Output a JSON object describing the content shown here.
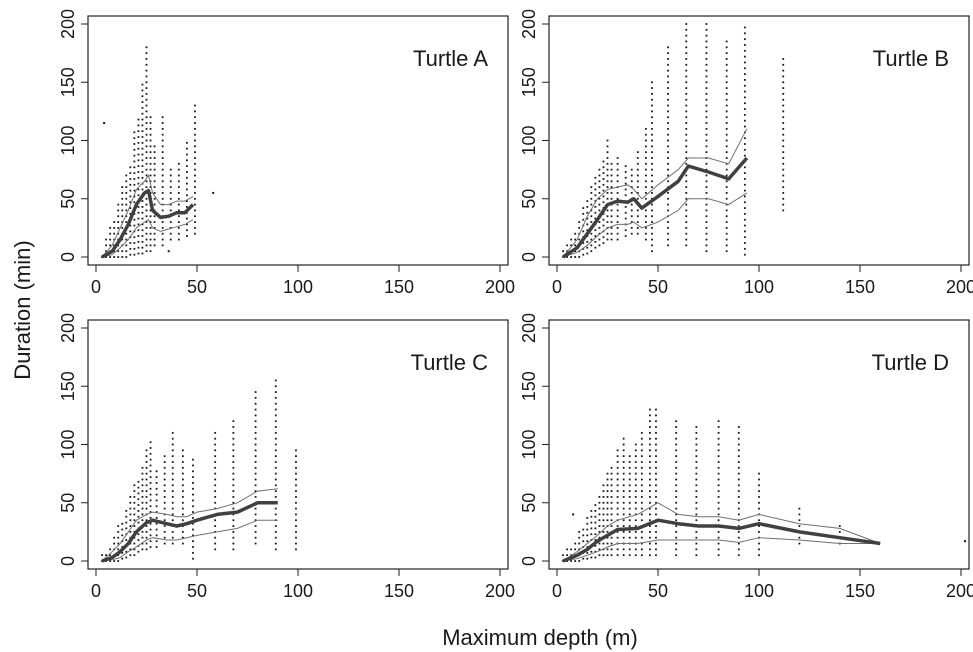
{
  "figure": {
    "ylabel": "Duration (min)",
    "xlabel": "Maximum depth (m)"
  },
  "colors": {
    "ink": "#1a1a1a",
    "median_line": "#404040",
    "quantile_line": "#707070",
    "frame": "#222222"
  },
  "chart_data": [
    {
      "type": "scatter",
      "title": "Turtle A",
      "xlim": [
        0,
        200
      ],
      "ylim": [
        0,
        200
      ],
      "xticks": [
        0,
        50,
        100,
        150,
        200
      ],
      "yticks": [
        0,
        50,
        100,
        150,
        200
      ],
      "grid": false,
      "columns": [
        {
          "x": 3,
          "ymin": 0,
          "ymax": 2
        },
        {
          "x": 5,
          "ymin": 0,
          "ymax": 18
        },
        {
          "x": 7,
          "ymin": 0,
          "ymax": 25
        },
        {
          "x": 9,
          "ymin": 0,
          "ymax": 30
        },
        {
          "x": 11,
          "ymin": 0,
          "ymax": 45
        },
        {
          "x": 13,
          "ymin": 0,
          "ymax": 60
        },
        {
          "x": 15,
          "ymin": 0,
          "ymax": 70
        },
        {
          "x": 17,
          "ymin": 2,
          "ymax": 80
        },
        {
          "x": 19,
          "ymin": 2,
          "ymax": 110
        },
        {
          "x": 21,
          "ymin": 3,
          "ymax": 120
        },
        {
          "x": 23,
          "ymin": 3,
          "ymax": 150
        },
        {
          "x": 25,
          "ymin": 5,
          "ymax": 180
        },
        {
          "x": 27,
          "ymin": 5,
          "ymax": 120
        },
        {
          "x": 29,
          "ymin": 10,
          "ymax": 95
        },
        {
          "x": 33,
          "ymin": 10,
          "ymax": 120
        },
        {
          "x": 37,
          "ymin": 15,
          "ymax": 75
        },
        {
          "x": 41,
          "ymin": 15,
          "ymax": 80
        },
        {
          "x": 45,
          "ymin": 18,
          "ymax": 100
        },
        {
          "x": 49,
          "ymin": 20,
          "ymax": 130
        }
      ],
      "outliers": [
        {
          "x": 4,
          "y": 115
        },
        {
          "x": 58,
          "y": 55
        },
        {
          "x": 36,
          "y": 5
        }
      ],
      "median": {
        "x": [
          3,
          8,
          12,
          16,
          20,
          24,
          26,
          28,
          32,
          36,
          40,
          44,
          48
        ],
        "y": [
          0,
          5,
          15,
          28,
          45,
          55,
          57,
          40,
          34,
          35,
          38,
          38,
          45
        ]
      },
      "upper": {
        "x": [
          3,
          8,
          12,
          16,
          20,
          24,
          26,
          28,
          32,
          36,
          40,
          44,
          48
        ],
        "y": [
          0,
          10,
          25,
          40,
          58,
          65,
          70,
          55,
          45,
          45,
          48,
          48,
          52
        ]
      },
      "lower": {
        "x": [
          3,
          8,
          12,
          16,
          20,
          24,
          26,
          28,
          32,
          36,
          40,
          44,
          48
        ],
        "y": [
          0,
          2,
          8,
          15,
          25,
          30,
          32,
          25,
          22,
          24,
          26,
          28,
          32
        ]
      }
    },
    {
      "type": "scatter",
      "title": "Turtle B",
      "xlim": [
        0,
        200
      ],
      "ylim": [
        0,
        200
      ],
      "xticks": [
        0,
        50,
        100,
        150,
        200
      ],
      "yticks": [
        0,
        50,
        100,
        150,
        200
      ],
      "grid": false,
      "columns": [
        {
          "x": 3,
          "ymin": 0,
          "ymax": 5
        },
        {
          "x": 5,
          "ymin": 0,
          "ymax": 10
        },
        {
          "x": 7,
          "ymin": 0,
          "ymax": 15
        },
        {
          "x": 9,
          "ymin": 0,
          "ymax": 20
        },
        {
          "x": 11,
          "ymin": 0,
          "ymax": 30
        },
        {
          "x": 13,
          "ymin": 2,
          "ymax": 45
        },
        {
          "x": 15,
          "ymin": 3,
          "ymax": 50
        },
        {
          "x": 17,
          "ymin": 5,
          "ymax": 60
        },
        {
          "x": 19,
          "ymin": 8,
          "ymax": 70
        },
        {
          "x": 21,
          "ymin": 10,
          "ymax": 75
        },
        {
          "x": 23,
          "ymin": 12,
          "ymax": 85
        },
        {
          "x": 25,
          "ymin": 15,
          "ymax": 100
        },
        {
          "x": 27,
          "ymin": 15,
          "ymax": 80
        },
        {
          "x": 30,
          "ymin": 15,
          "ymax": 85
        },
        {
          "x": 34,
          "ymin": 18,
          "ymax": 80
        },
        {
          "x": 37,
          "ymin": 20,
          "ymax": 75
        },
        {
          "x": 40,
          "ymin": 20,
          "ymax": 90
        },
        {
          "x": 44,
          "ymin": 15,
          "ymax": 110
        },
        {
          "x": 47,
          "ymin": 5,
          "ymax": 150
        },
        {
          "x": 55,
          "ymin": 10,
          "ymax": 180
        },
        {
          "x": 64,
          "ymin": 10,
          "ymax": 200
        },
        {
          "x": 74,
          "ymin": 5,
          "ymax": 200
        },
        {
          "x": 84,
          "ymin": 5,
          "ymax": 185
        },
        {
          "x": 93,
          "ymin": 2,
          "ymax": 200
        },
        {
          "x": 112,
          "ymin": 40,
          "ymax": 170
        }
      ],
      "outliers": [],
      "median": {
        "x": [
          3,
          10,
          15,
          20,
          25,
          30,
          35,
          38,
          42,
          50,
          60,
          65,
          75,
          85,
          94
        ],
        "y": [
          0,
          8,
          20,
          32,
          45,
          48,
          47,
          50,
          42,
          52,
          65,
          78,
          73,
          67,
          85
        ]
      },
      "upper": {
        "x": [
          3,
          10,
          15,
          20,
          25,
          30,
          35,
          38,
          42,
          50,
          60,
          65,
          75,
          85,
          94
        ],
        "y": [
          0,
          15,
          35,
          50,
          58,
          60,
          62,
          58,
          50,
          62,
          75,
          85,
          85,
          80,
          110
        ]
      },
      "lower": {
        "x": [
          3,
          10,
          15,
          20,
          25,
          30,
          35,
          38,
          42,
          50,
          60,
          65,
          75,
          85,
          94
        ],
        "y": [
          0,
          4,
          10,
          18,
          25,
          28,
          28,
          30,
          25,
          30,
          40,
          50,
          50,
          45,
          55
        ]
      }
    },
    {
      "type": "scatter",
      "title": "Turtle C",
      "xlim": [
        0,
        200
      ],
      "ylim": [
        0,
        200
      ],
      "xticks": [
        0,
        50,
        100,
        150,
        200
      ],
      "yticks": [
        0,
        50,
        100,
        150,
        200
      ],
      "grid": false,
      "columns": [
        {
          "x": 3,
          "ymin": 0,
          "ymax": 5
        },
        {
          "x": 5,
          "ymin": 0,
          "ymax": 8
        },
        {
          "x": 7,
          "ymin": 0,
          "ymax": 12
        },
        {
          "x": 9,
          "ymin": 0,
          "ymax": 20
        },
        {
          "x": 11,
          "ymin": 0,
          "ymax": 30
        },
        {
          "x": 13,
          "ymin": 2,
          "ymax": 35
        },
        {
          "x": 15,
          "ymin": 3,
          "ymax": 45
        },
        {
          "x": 17,
          "ymin": 5,
          "ymax": 55
        },
        {
          "x": 19,
          "ymin": 5,
          "ymax": 65
        },
        {
          "x": 21,
          "ymin": 8,
          "ymax": 70
        },
        {
          "x": 23,
          "ymin": 10,
          "ymax": 80
        },
        {
          "x": 25,
          "ymin": 10,
          "ymax": 95
        },
        {
          "x": 27,
          "ymin": 12,
          "ymax": 105
        },
        {
          "x": 30,
          "ymin": 12,
          "ymax": 80
        },
        {
          "x": 34,
          "ymin": 15,
          "ymax": 90
        },
        {
          "x": 38,
          "ymin": 15,
          "ymax": 112
        },
        {
          "x": 43,
          "ymin": 15,
          "ymax": 95
        },
        {
          "x": 48,
          "ymin": 2,
          "ymax": 90
        },
        {
          "x": 59,
          "ymin": 10,
          "ymax": 110
        },
        {
          "x": 68,
          "ymin": 10,
          "ymax": 120
        },
        {
          "x": 79,
          "ymin": 15,
          "ymax": 145
        },
        {
          "x": 89,
          "ymin": 10,
          "ymax": 157
        },
        {
          "x": 99,
          "ymin": 10,
          "ymax": 95
        }
      ],
      "outliers": [],
      "median": {
        "x": [
          3,
          8,
          12,
          16,
          20,
          25,
          28,
          35,
          40,
          45,
          50,
          60,
          70,
          80,
          90
        ],
        "y": [
          0,
          3,
          8,
          15,
          25,
          33,
          35,
          32,
          30,
          32,
          35,
          40,
          42,
          50,
          50
        ]
      },
      "upper": {
        "x": [
          3,
          8,
          12,
          16,
          20,
          25,
          28,
          35,
          40,
          45,
          50,
          60,
          70,
          80,
          90
        ],
        "y": [
          0,
          8,
          15,
          25,
          35,
          40,
          42,
          40,
          38,
          38,
          42,
          45,
          50,
          60,
          62
        ]
      },
      "lower": {
        "x": [
          3,
          8,
          12,
          16,
          20,
          25,
          28,
          35,
          40,
          45,
          50,
          60,
          70,
          80,
          90
        ],
        "y": [
          0,
          1,
          3,
          8,
          12,
          18,
          20,
          18,
          18,
          20,
          22,
          25,
          28,
          35,
          35
        ]
      }
    },
    {
      "type": "scatter",
      "title": "Turtle D",
      "xlim": [
        0,
        200
      ],
      "ylim": [
        0,
        200
      ],
      "xticks": [
        0,
        50,
        100,
        150,
        200
      ],
      "yticks": [
        0,
        50,
        100,
        150,
        200
      ],
      "grid": false,
      "columns": [
        {
          "x": 3,
          "ymin": 0,
          "ymax": 5
        },
        {
          "x": 5,
          "ymin": 0,
          "ymax": 10
        },
        {
          "x": 7,
          "ymin": 0,
          "ymax": 12
        },
        {
          "x": 9,
          "ymin": 0,
          "ymax": 15
        },
        {
          "x": 11,
          "ymin": 0,
          "ymax": 25
        },
        {
          "x": 13,
          "ymin": 2,
          "ymax": 30
        },
        {
          "x": 15,
          "ymin": 2,
          "ymax": 40
        },
        {
          "x": 17,
          "ymin": 3,
          "ymax": 45
        },
        {
          "x": 19,
          "ymin": 3,
          "ymax": 50
        },
        {
          "x": 21,
          "ymin": 5,
          "ymax": 55
        },
        {
          "x": 23,
          "ymin": 5,
          "ymax": 65
        },
        {
          "x": 25,
          "ymin": 5,
          "ymax": 75
        },
        {
          "x": 27,
          "ymin": 5,
          "ymax": 80
        },
        {
          "x": 30,
          "ymin": 5,
          "ymax": 95
        },
        {
          "x": 33,
          "ymin": 5,
          "ymax": 105
        },
        {
          "x": 36,
          "ymin": 5,
          "ymax": 90
        },
        {
          "x": 39,
          "ymin": 5,
          "ymax": 100
        },
        {
          "x": 42,
          "ymin": 5,
          "ymax": 110
        },
        {
          "x": 46,
          "ymin": 5,
          "ymax": 130
        },
        {
          "x": 49,
          "ymin": 5,
          "ymax": 130
        },
        {
          "x": 59,
          "ymin": 5,
          "ymax": 120
        },
        {
          "x": 69,
          "ymin": 5,
          "ymax": 115
        },
        {
          "x": 80,
          "ymin": 5,
          "ymax": 120
        },
        {
          "x": 90,
          "ymin": 5,
          "ymax": 115
        },
        {
          "x": 100,
          "ymin": 5,
          "ymax": 75
        },
        {
          "x": 120,
          "ymin": 15,
          "ymax": 45
        },
        {
          "x": 140,
          "ymin": 15,
          "ymax": 30
        }
      ],
      "outliers": [
        {
          "x": 8,
          "y": 40
        },
        {
          "x": 202,
          "y": 17
        }
      ],
      "median": {
        "x": [
          3,
          10,
          15,
          20,
          25,
          30,
          40,
          50,
          60,
          70,
          80,
          90,
          100,
          120,
          140,
          160
        ],
        "y": [
          0,
          5,
          10,
          17,
          22,
          27,
          28,
          35,
          32,
          30,
          30,
          28,
          32,
          25,
          20,
          15
        ]
      },
      "upper": {
        "x": [
          3,
          10,
          15,
          20,
          25,
          30,
          40,
          50,
          60,
          70,
          80,
          90,
          100,
          120,
          140,
          160
        ],
        "y": [
          0,
          8,
          15,
          22,
          30,
          35,
          40,
          50,
          40,
          38,
          38,
          35,
          40,
          32,
          28,
          15
        ]
      },
      "lower": {
        "x": [
          3,
          10,
          15,
          20,
          25,
          30,
          40,
          50,
          60,
          70,
          80,
          90,
          100,
          120,
          140,
          160
        ],
        "y": [
          0,
          2,
          5,
          8,
          12,
          15,
          15,
          18,
          18,
          18,
          18,
          16,
          20,
          18,
          15,
          15
        ]
      }
    }
  ]
}
